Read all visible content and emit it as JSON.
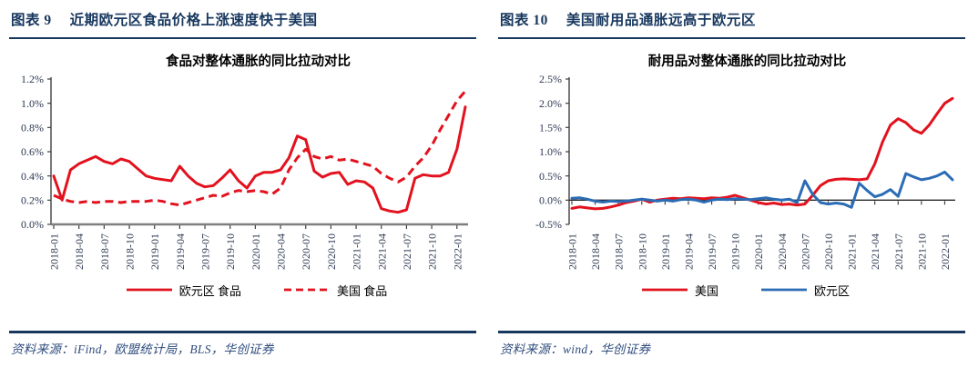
{
  "theme": {
    "header_color": "#17375e",
    "rule_color": "#17375e",
    "source_color": "#2f4d7d",
    "red": "#e2121e",
    "blue": "#2b6cb5"
  },
  "figures": [
    {
      "tag": "图表 9",
      "title": "近期欧元区食品价格上涨速度快于美国",
      "source": "资料来源：iFind，欧盟统计局，BLS，华创证券"
    },
    {
      "tag": "图表 10",
      "title": "美国耐用品通胀远高于欧元区",
      "source": "资料来源：wind，华创证券"
    }
  ],
  "chart_data": [
    {
      "type": "line",
      "title": "食品对整体通胀的同比拉动对比",
      "x_tick_labels": [
        "2018-01",
        "2018-04",
        "2018-07",
        "2018-10",
        "2019-01",
        "2019-04",
        "2019-07",
        "2019-10",
        "2020-01",
        "2020-04",
        "2020-07",
        "2020-10",
        "2021-01",
        "2021-04",
        "2021-07",
        "2021-10",
        "2022-01"
      ],
      "x_tick_every": 3,
      "n_points": 50,
      "x_range_note": "monthly 2018-01 to 2022-02",
      "ylim": [
        0,
        1.2
      ],
      "y_tick_step": 0.2,
      "y_label_format": "0.0%",
      "grid": false,
      "legend_position": "bottom",
      "series": [
        {
          "name": "欧元区 食品",
          "color": "#e2121e",
          "style": "solid",
          "values": [
            0.4,
            0.2,
            0.45,
            0.5,
            0.53,
            0.56,
            0.52,
            0.5,
            0.54,
            0.52,
            0.46,
            0.4,
            0.38,
            0.37,
            0.36,
            0.48,
            0.4,
            0.34,
            0.31,
            0.32,
            0.38,
            0.45,
            0.36,
            0.3,
            0.4,
            0.43,
            0.43,
            0.45,
            0.55,
            0.73,
            0.7,
            0.44,
            0.39,
            0.42,
            0.43,
            0.33,
            0.36,
            0.35,
            0.3,
            0.13,
            0.11,
            0.1,
            0.12,
            0.38,
            0.41,
            0.4,
            0.4,
            0.43,
            0.62,
            0.97
          ]
        },
        {
          "name": "美国 食品",
          "color": "#e2121e",
          "style": "dashed",
          "values": [
            0.24,
            0.21,
            0.19,
            0.18,
            0.19,
            0.18,
            0.19,
            0.19,
            0.18,
            0.19,
            0.19,
            0.19,
            0.2,
            0.19,
            0.17,
            0.16,
            0.18,
            0.2,
            0.22,
            0.24,
            0.23,
            0.26,
            0.28,
            0.27,
            0.28,
            0.27,
            0.25,
            0.3,
            0.45,
            0.55,
            0.62,
            0.56,
            0.54,
            0.56,
            0.53,
            0.54,
            0.52,
            0.5,
            0.48,
            0.42,
            0.38,
            0.35,
            0.39,
            0.48,
            0.55,
            0.65,
            0.78,
            0.9,
            1.02,
            1.1
          ]
        }
      ]
    },
    {
      "type": "line",
      "title": "耐用品对整体通胀的同比拉动对比",
      "x_tick_labels": [
        "2018-01",
        "2018-04",
        "2018-07",
        "2018-10",
        "2019-01",
        "2019-04",
        "2019-07",
        "2019-10",
        "2020-01",
        "2020-04",
        "2020-07",
        "2020-10",
        "2021-01",
        "2021-04",
        "2021-07",
        "2021-10",
        "2022-01"
      ],
      "x_tick_every": 3,
      "n_points": 50,
      "x_range_note": "monthly 2018-01 to 2022-02",
      "ylim": [
        -0.5,
        2.5
      ],
      "y_tick_step": 0.5,
      "y_label_format": "0.0%",
      "grid": false,
      "legend_position": "bottom",
      "series": [
        {
          "name": "美国",
          "color": "#e2121e",
          "style": "solid",
          "values": [
            -0.17,
            -0.14,
            -0.16,
            -0.18,
            -0.17,
            -0.14,
            -0.1,
            -0.05,
            -0.02,
            0.02,
            -0.04,
            0.0,
            0.02,
            0.04,
            0.03,
            0.05,
            0.04,
            0.03,
            0.05,
            0.04,
            0.06,
            0.1,
            0.05,
            0.0,
            -0.05,
            -0.08,
            -0.06,
            -0.09,
            -0.08,
            -0.1,
            -0.08,
            0.1,
            0.3,
            0.4,
            0.43,
            0.44,
            0.43,
            0.42,
            0.44,
            0.75,
            1.2,
            1.55,
            1.68,
            1.6,
            1.45,
            1.38,
            1.55,
            1.78,
            2.0,
            2.1
          ]
        },
        {
          "name": "欧元区",
          "color": "#2b6cb5",
          "style": "solid",
          "values": [
            0.04,
            0.05,
            0.02,
            -0.02,
            -0.04,
            -0.02,
            -0.03,
            -0.02,
            0.0,
            0.02,
            0.0,
            -0.02,
            0.0,
            -0.02,
            0.01,
            0.02,
            0.0,
            -0.04,
            0.0,
            0.02,
            0.01,
            0.03,
            0.02,
            0.01,
            0.03,
            0.05,
            0.02,
            0.0,
            0.02,
            -0.05,
            0.4,
            0.12,
            -0.05,
            -0.08,
            -0.06,
            -0.08,
            -0.15,
            0.35,
            0.2,
            0.07,
            0.12,
            0.22,
            0.08,
            0.55,
            0.48,
            0.42,
            0.45,
            0.5,
            0.58,
            0.42
          ]
        }
      ]
    }
  ]
}
